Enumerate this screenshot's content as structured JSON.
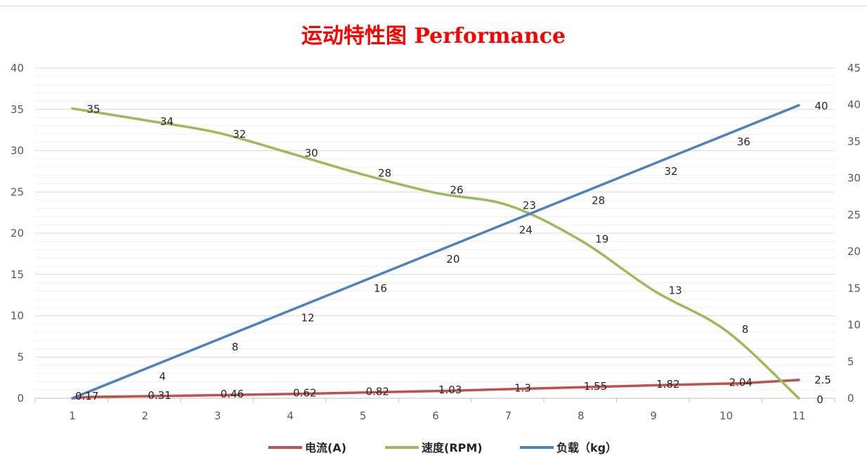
{
  "chart_data": {
    "type": "line",
    "title": "运动特性图 Performance",
    "title_color": "#ff0000",
    "categories": [
      1,
      2,
      3,
      4,
      5,
      6,
      7,
      8,
      9,
      10,
      11
    ],
    "y_left": {
      "min": 0,
      "max": 40,
      "step": 5,
      "ticks": [
        "0",
        "5",
        "10",
        "15",
        "20",
        "25",
        "30",
        "35",
        "40"
      ]
    },
    "y_right": {
      "min": 0,
      "max": 45,
      "step": 5,
      "ticks": [
        "0",
        "5",
        "10",
        "15",
        "20",
        "25",
        "30",
        "35",
        "40",
        "45"
      ]
    },
    "grid": true,
    "legend_position": "bottom",
    "series": [
      {
        "name": "电流(A)",
        "color": "#c0504d",
        "axis": "right",
        "values": [
          0,
          0.17,
          0.31,
          0.46,
          0.62,
          0.82,
          1.03,
          1.3,
          1.55,
          1.82,
          2.04,
          2.5
        ],
        "x": [
          1,
          1.2,
          2.2,
          3.2,
          4.2,
          5.2,
          6.2,
          7.2,
          8.2,
          9.2,
          10.2,
          11
        ],
        "labels": [
          "0.17",
          "0.31",
          "0.46",
          "0.62",
          "0.82",
          "1.03",
          "1.3",
          "1.55",
          "1.82",
          "2.04",
          "2.5"
        ]
      },
      {
        "name": "速度(RPM)",
        "color": "#9bbb59",
        "axis": "right",
        "x": [
          1,
          2,
          3,
          4,
          5,
          6,
          7,
          8,
          9,
          10,
          11
        ],
        "values": [
          39.5,
          37.9,
          36.2,
          33.4,
          30.5,
          28.0,
          26.3,
          21.5,
          14.7,
          9.2,
          0
        ],
        "labels": [
          "35",
          "34",
          "32",
          "30",
          "28",
          "26",
          "23",
          "19",
          "13",
          "8",
          "0"
        ]
      },
      {
        "name": "负载（kg）",
        "color": "#4f81bd",
        "axis": "left",
        "x": [
          1,
          11
        ],
        "values": [
          0,
          35.5
        ],
        "labels": [
          "4",
          "8",
          "12",
          "16",
          "20",
          "24",
          "28",
          "32",
          "36",
          "40"
        ]
      }
    ]
  }
}
